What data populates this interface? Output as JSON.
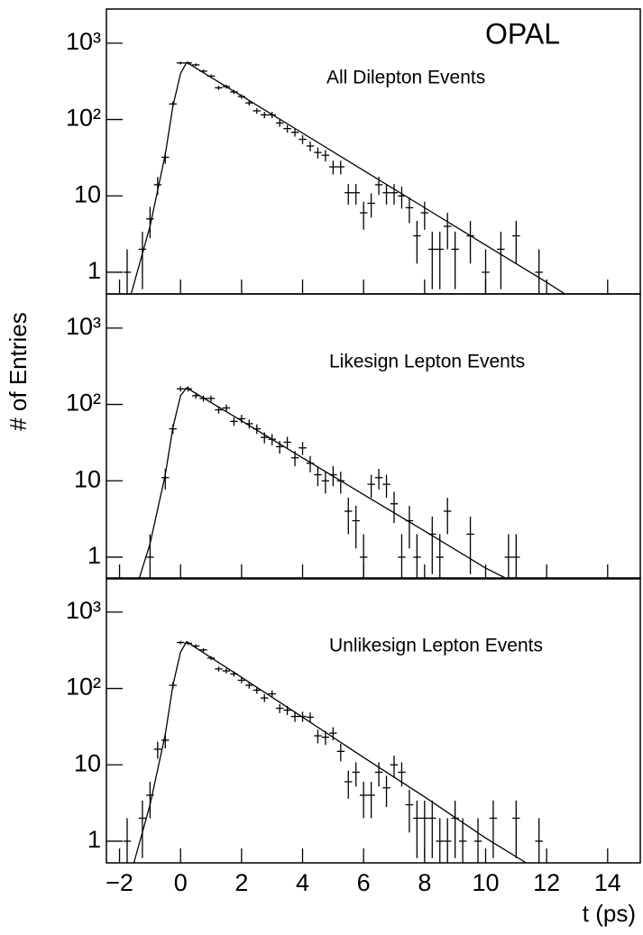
{
  "chart_data": [
    {
      "type": "errorbar",
      "title": "All Dilepton Events",
      "annotation": "OPAL",
      "log_y": true,
      "color": "#000000",
      "bin_width": 0.25,
      "xlim": [
        -2.43,
        15.07
      ],
      "ylim": [
        0.52,
        2800
      ],
      "yticks": [
        1,
        10,
        {
          "value": 100,
          "label": "10²"
        },
        {
          "value": 1000,
          "label": "10³"
        }
      ],
      "x": [
        -1.75,
        -1.25,
        -1,
        -0.75,
        -0.5,
        -0.25,
        0,
        0.25,
        0.5,
        0.75,
        1,
        1.25,
        1.5,
        1.75,
        2,
        2.25,
        2.5,
        2.75,
        3,
        3.25,
        3.5,
        3.75,
        4,
        4.25,
        4.5,
        4.75,
        5,
        5.25,
        5.5,
        5.75,
        6,
        6.25,
        6.5,
        6.75,
        7,
        7.25,
        7.5,
        7.75,
        8,
        8.25,
        8.5,
        8.75,
        9,
        9.5,
        10,
        10.5,
        11,
        11.75
      ],
      "values": [
        1,
        2,
        5,
        14,
        32,
        160,
        550,
        550,
        520,
        430,
        370,
        260,
        270,
        230,
        200,
        165,
        130,
        115,
        115,
        90,
        76,
        68,
        55,
        45,
        37,
        34,
        24,
        24,
        11,
        11,
        6,
        8,
        14,
        11,
        11,
        10,
        7,
        3,
        6,
        2,
        2,
        4,
        2,
        3,
        1,
        2,
        3,
        1
      ],
      "errors": [
        1,
        1.4,
        2.2,
        3.7,
        5.7,
        12.6,
        23,
        23,
        23,
        21,
        19,
        16,
        16,
        15,
        14,
        13,
        11,
        11,
        11,
        9.5,
        8.7,
        8.2,
        7.4,
        6.7,
        6.1,
        5.8,
        4.9,
        4.9,
        3.3,
        3.3,
        2.4,
        2.8,
        3.7,
        3.3,
        3.3,
        3.2,
        2.6,
        1.7,
        2.4,
        1.4,
        1.4,
        2,
        1.4,
        1.7,
        1,
        1.4,
        1.7,
        1
      ],
      "fit": {
        "x": [
          -1.62,
          -1,
          -0.5,
          -0.25,
          0,
          0.2,
          1,
          2,
          4,
          6,
          8,
          10,
          12,
          12.6
        ],
        "values": [
          0.52,
          4,
          35,
          150,
          400,
          560,
          356,
          204,
          66.4,
          21.5,
          7,
          2.27,
          0.74,
          0.52
        ]
      }
    },
    {
      "type": "errorbar",
      "title": "Likesign Lepton Events",
      "ylabel": "# of Entries",
      "log_y": true,
      "color": "#000000",
      "bin_width": 0.25,
      "xlim": [
        -2.43,
        15.07
      ],
      "ylim": [
        0.52,
        2800
      ],
      "yticks": [
        1,
        10,
        {
          "value": 100,
          "label": "10²"
        },
        {
          "value": 1000,
          "label": "10³"
        }
      ],
      "x": [
        -1,
        -0.5,
        -0.25,
        0,
        0.25,
        0.5,
        0.75,
        1,
        1.25,
        1.5,
        1.75,
        2,
        2.25,
        2.5,
        2.75,
        3,
        3.25,
        3.5,
        3.75,
        4,
        4.25,
        4.5,
        4.75,
        5,
        5.25,
        5.5,
        5.75,
        6,
        6.25,
        6.5,
        6.75,
        7,
        7.25,
        7.5,
        7.75,
        8.25,
        8.5,
        8.75,
        9.5,
        10.75,
        11
      ],
      "values": [
        1,
        11,
        48,
        160,
        160,
        130,
        120,
        120,
        85,
        90,
        60,
        65,
        56,
        48,
        37,
        35,
        28,
        32,
        20,
        27,
        17,
        12,
        10,
        12,
        10,
        4,
        3,
        1,
        9,
        11,
        9,
        5,
        1,
        3,
        1,
        2,
        1,
        4,
        2,
        1,
        1
      ],
      "errors": [
        1,
        3.3,
        6.9,
        12.6,
        12.6,
        11.4,
        11,
        11,
        9.2,
        9.5,
        7.7,
        8.1,
        7.5,
        6.9,
        6.1,
        5.9,
        5.3,
        5.7,
        4.5,
        5.2,
        4.1,
        3.5,
        3.2,
        3.5,
        3.2,
        2,
        1.7,
        1,
        3,
        3.3,
        3,
        2.2,
        1,
        1.7,
        1,
        1.4,
        1,
        2,
        1.4,
        1,
        1
      ],
      "fit": {
        "x": [
          -1.36,
          -1,
          -0.5,
          -0.25,
          0,
          0.2,
          1,
          2,
          4,
          6,
          8,
          10,
          10.7
        ],
        "values": [
          0.52,
          1.5,
          12,
          50,
          130,
          165,
          106,
          61,
          20,
          6.6,
          2.2,
          0.72,
          0.52
        ]
      }
    },
    {
      "type": "errorbar",
      "title": "Unlikesign Lepton Events",
      "xlabel": "t (ps)",
      "log_y": true,
      "color": "#000000",
      "bin_width": 0.25,
      "xlim": [
        -2.43,
        15.07
      ],
      "ylim": [
        0.52,
        2800
      ],
      "xticks": [
        {
          "value": -2,
          "label": "−2"
        },
        0,
        2,
        4,
        6,
        8,
        10,
        12,
        14
      ],
      "yticks": [
        1,
        10,
        {
          "value": 100,
          "label": "10²"
        },
        {
          "value": 1000,
          "label": "10³"
        }
      ],
      "x": [
        -1.75,
        -1.25,
        -1,
        -0.75,
        -0.5,
        -0.25,
        0,
        0.25,
        0.5,
        0.75,
        1,
        1.25,
        1.5,
        1.75,
        2,
        2.25,
        2.5,
        2.75,
        3,
        3.25,
        3.5,
        3.75,
        4,
        4.25,
        4.5,
        4.75,
        5,
        5.25,
        5.5,
        5.75,
        6,
        6.25,
        6.5,
        6.75,
        7,
        7.25,
        7.5,
        7.75,
        8,
        8.25,
        8.5,
        8.75,
        9,
        9.25,
        9.75,
        10.25,
        11,
        11.75
      ],
      "values": [
        1,
        2,
        4,
        16,
        21,
        110,
        400,
        390,
        360,
        320,
        250,
        180,
        170,
        155,
        128,
        110,
        95,
        75,
        85,
        55,
        52,
        43,
        43,
        42,
        24,
        23,
        26,
        15,
        6,
        8,
        4,
        4,
        8,
        5,
        10,
        8,
        3,
        2,
        2,
        2,
        1,
        1,
        2,
        1,
        1,
        2,
        2,
        1
      ],
      "errors": [
        1,
        1.4,
        2,
        4,
        4.6,
        10.5,
        20,
        19.7,
        19,
        17.9,
        15.8,
        13.4,
        13,
        12.4,
        11.3,
        10.5,
        9.7,
        8.7,
        9.2,
        7.4,
        7.2,
        6.6,
        6.6,
        6.5,
        4.9,
        4.8,
        5.1,
        3.9,
        2.4,
        2.8,
        2,
        2,
        2.8,
        2.2,
        3.2,
        2.8,
        1.7,
        1.4,
        1.4,
        1.4,
        1,
        1,
        1.4,
        1,
        1,
        1.4,
        1.4,
        1
      ],
      "fit": {
        "x": [
          -1.53,
          -1,
          -0.5,
          -0.25,
          0,
          0.2,
          1,
          2,
          4,
          6,
          8,
          10,
          11.33
        ],
        "values": [
          0.52,
          3,
          25,
          110,
          300,
          410,
          253,
          140,
          42,
          12.5,
          3.8,
          1.1,
          0.52
        ]
      }
    }
  ]
}
